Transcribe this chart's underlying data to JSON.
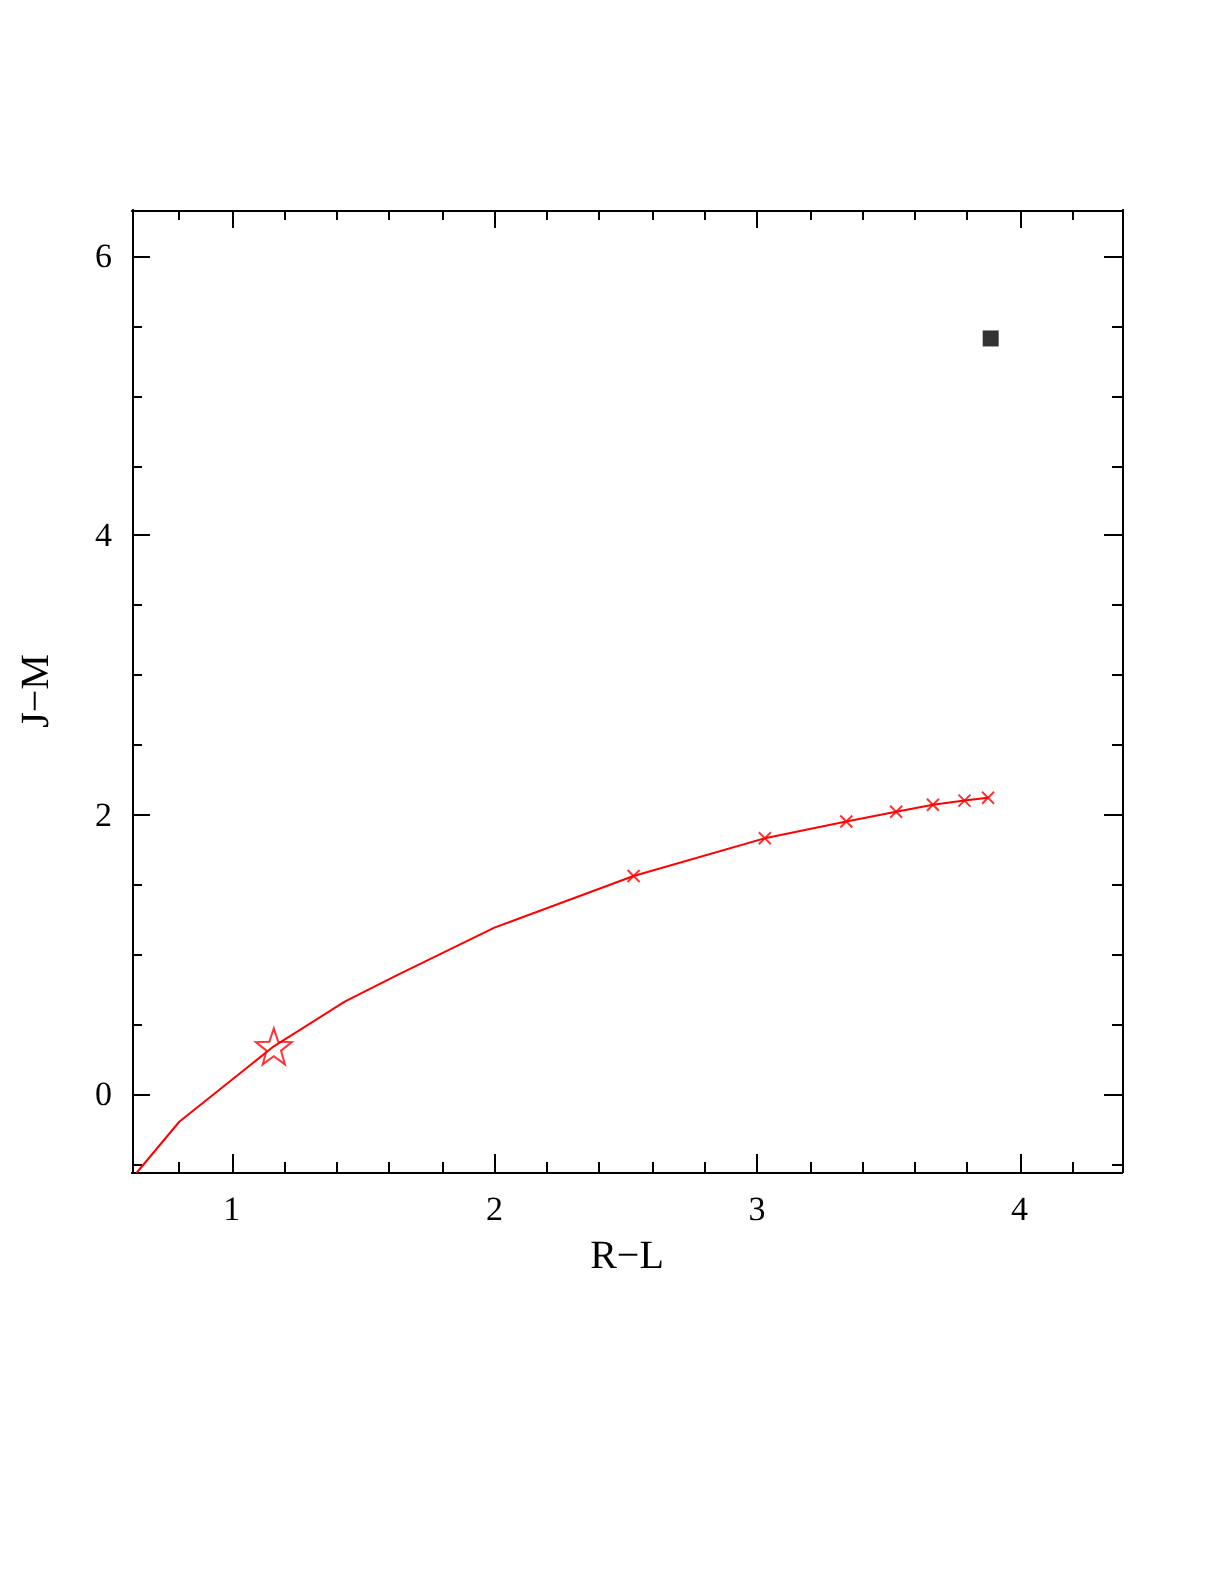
{
  "chart_data": {
    "type": "line",
    "xlabel": "R−L",
    "ylabel": "J−M",
    "xlim": [
      0.62,
      4.39
    ],
    "ylim": [
      -0.56,
      6.33
    ],
    "xticks": [
      {
        "value": 0.8,
        "label": null
      },
      1,
      {
        "value": 1.2,
        "label": null
      },
      {
        "value": 1.4,
        "label": null
      },
      {
        "value": 1.6,
        "label": null
      },
      {
        "value": 1.8,
        "label": null
      },
      2,
      {
        "value": 2.2,
        "label": null
      },
      {
        "value": 2.4,
        "label": null
      },
      {
        "value": 2.6,
        "label": null
      },
      {
        "value": 2.8,
        "label": null
      },
      3,
      {
        "value": 3.2,
        "label": null
      },
      {
        "value": 3.4,
        "label": null
      },
      {
        "value": 3.6,
        "label": null
      },
      {
        "value": 3.8,
        "label": null
      },
      4,
      {
        "value": 4.2,
        "label": null
      }
    ],
    "yticks": [
      {
        "value": -0.5,
        "label": null
      },
      0,
      {
        "value": 0.5,
        "label": null
      },
      {
        "value": 1,
        "label": null
      },
      {
        "value": 1.5,
        "label": null
      },
      2,
      {
        "value": 2.5,
        "label": null
      },
      {
        "value": 3,
        "label": null
      },
      {
        "value": 3.5,
        "label": null
      },
      4,
      {
        "value": 4.5,
        "label": null
      },
      {
        "value": 5,
        "label": null
      },
      {
        "value": 5.5,
        "label": null
      },
      6
    ],
    "grid": false,
    "series": [
      {
        "color": "#ff0000",
        "marker": "none",
        "line_style": "solid",
        "x": [
          0.64,
          0.8,
          1.16,
          1.43,
          1.63,
          2.0,
          2.53,
          3.03,
          3.34,
          3.53,
          3.67,
          3.79,
          3.88
        ],
        "values": [
          -0.56,
          -0.2,
          0.34,
          0.66,
          0.85,
          1.19,
          1.56,
          1.83,
          1.95,
          2.02,
          2.07,
          2.1,
          2.12
        ]
      },
      {
        "type": "scatter",
        "color": "#ff0000",
        "marker": "cross",
        "x": [
          2.53,
          3.03,
          3.34,
          3.53,
          3.67,
          3.79,
          3.88
        ],
        "values": [
          1.56,
          1.83,
          1.95,
          2.02,
          2.07,
          2.1,
          2.12
        ]
      },
      {
        "type": "scatter",
        "color": "#ff0000",
        "marker": "star",
        "x": [
          1.16
        ],
        "values": [
          0.34
        ]
      },
      {
        "type": "scatter",
        "color": "#000000",
        "marker": "square",
        "x": [
          3.89
        ],
        "values": [
          5.41
        ]
      }
    ]
  }
}
